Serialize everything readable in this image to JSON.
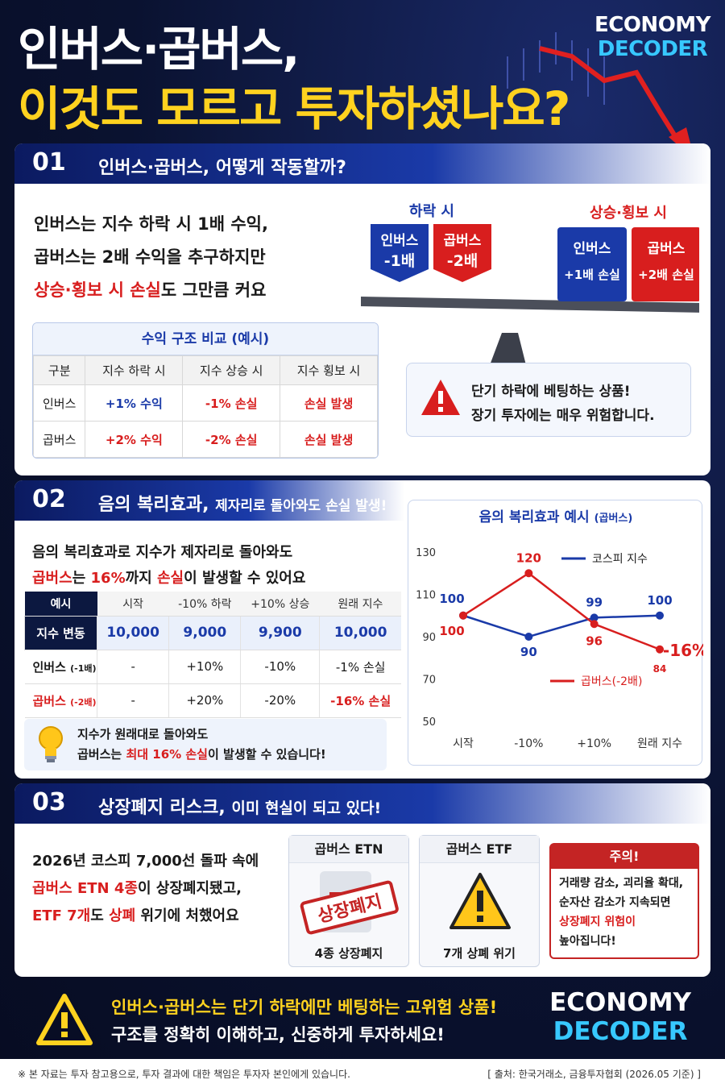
{
  "header": {
    "title_line1": "인버스·곱버스,",
    "title_line2": "이것도 모르고 투자하셨나요?",
    "logo_line1": "ECONOMY",
    "logo_line2": "DECODER"
  },
  "section1": {
    "num": "01",
    "title": "인버스·곱버스, 어떻게 작동할까?",
    "text_line1": "인버스는 지수 하락 시 1배 수익,",
    "text_line2": "곱버스는 2배 수익을 추구하지만",
    "text_line3_red": "상승·횡보 시 손실",
    "text_line3_rest": "도 그만큼 커요",
    "seesaw": {
      "left_label": "하락 시",
      "right_label": "상승·횡보 시",
      "blocks": [
        {
          "name": "인버스",
          "value": "-1배"
        },
        {
          "name": "곱버스",
          "value": "-2배"
        },
        {
          "name": "인버스",
          "value": "+1배 손실"
        },
        {
          "name": "곱버스",
          "value": "+2배 손실"
        }
      ]
    },
    "table": {
      "caption": "수익 구조 비교 (예시)",
      "headers": [
        "구분",
        "지수 하락 시",
        "지수 상승 시",
        "지수 횡보 시"
      ],
      "rows": [
        [
          "인버스",
          "+1% 수익",
          "-1% 손실",
          "손실 발생"
        ],
        [
          "곱버스",
          "+2% 수익",
          "-2% 손실",
          "손실 발생"
        ]
      ]
    },
    "warning_line1": "단기 하락에 베팅하는 상품!",
    "warning_line2": "장기 투자에는 매우 위험합니다."
  },
  "section2": {
    "num": "02",
    "title": "음의 복리효과,",
    "subtitle": "제자리로 돌아와도 손실 발생!",
    "text_line1": "음의 복리효과로 지수가 제자리로 돌아와도",
    "text_line2_a": "곱버스",
    "text_line2_b": "는 ",
    "text_line2_c": "16%",
    "text_line2_d": "까지 ",
    "text_line2_e": "손실",
    "text_line2_f": "이 발생할 수 있어요",
    "table": {
      "corner_top": "예시",
      "corner_bottom": "지수 변동",
      "headers": [
        "시작",
        "-10% 하락",
        "+10% 상승",
        "원래 지수"
      ],
      "index_values": [
        "10,000",
        "9,000",
        "9,900",
        "10,000"
      ],
      "rows": [
        {
          "label": "인버스",
          "sub": "(-1배)",
          "cells": [
            "-",
            "+10%",
            "-10%",
            "-1% 손실"
          ]
        },
        {
          "label": "곱버스",
          "sub": "(-2배)",
          "cells": [
            "-",
            "+20%",
            "-20%",
            "-16% 손실"
          ]
        }
      ]
    },
    "tip_line1": "지수가 원래대로 돌아와도",
    "tip_line2_a": "곱버스는 ",
    "tip_line2_b": "최대 16% 손실",
    "tip_line2_c": "이 발생할 수 있습니다!"
  },
  "chart_data": {
    "type": "line",
    "title": "음의 복리효과 예시",
    "title_sub": "(곱버스)",
    "categories": [
      "시작",
      "-10%",
      "+10%",
      "원래 지수"
    ],
    "ylim": [
      50,
      130
    ],
    "yticks": [
      50,
      70,
      90,
      110,
      130
    ],
    "series": [
      {
        "name": "코스피 지수",
        "color": "#1a3aa8",
        "values": [
          100,
          90,
          99,
          100
        ]
      },
      {
        "name": "곱버스(-2배)",
        "color": "#d81e1e",
        "values": [
          100,
          120,
          96,
          84
        ]
      }
    ],
    "annotation": "-16%",
    "annotation_unit": "%",
    "grid": false,
    "legend": "inside"
  },
  "section3": {
    "num": "03",
    "title": "상장폐지 리스크,",
    "subtitle": "이미 현실이 되고 있다!",
    "text_line1": "2026년 코스피 7,000선 돌파 속에",
    "text_line2_red": "곱버스 ETN 4종",
    "text_line2_rest": "이 상장폐지됐고,",
    "text_line3_red1": "ETF 7개",
    "text_line3_mid": "도 ",
    "text_line3_red2": "상폐",
    "text_line3_rest": " 위기에 처했어요",
    "card1": {
      "title": "곱버스 ETN",
      "stamp": "상장폐지",
      "footer": "4종 상장폐지"
    },
    "card2": {
      "title": "곱버스 ETF",
      "footer": "7개 상폐 위기"
    },
    "caution": {
      "title": "주의!",
      "line1": "거래량 감소, 괴리율 확대,",
      "line2": "순자산 감소가 지속되면",
      "line3_red": "상장폐지 위험이",
      "line4": "높아집니다!"
    }
  },
  "banner": {
    "line1": "인버스·곱버스는 단기 하락에만 베팅하는 고위험 상품!",
    "line2": "구조를 정확히 이해하고, 신중하게 투자하세요!",
    "logo_line1": "ECONOMY",
    "logo_line2": "DECODER"
  },
  "footer": {
    "disclaimer": "※ 본 자료는 투자 참고용으로, 투자 결과에 대한 책임은 투자자 본인에게 있습니다.",
    "source": "[ 출처: 한국거래소, 금융투자협회 (2026.05 기준) ]"
  }
}
